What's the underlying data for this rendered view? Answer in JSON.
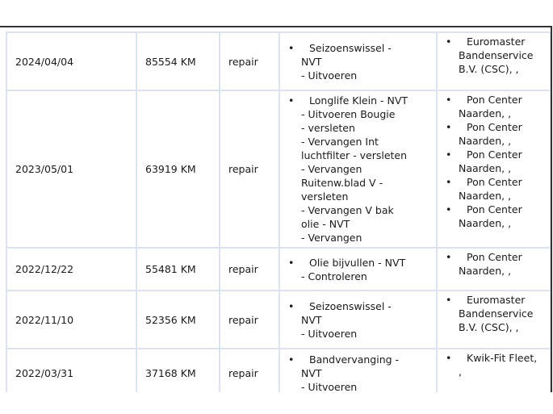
{
  "rows": [
    {
      "date": "2024/04/04",
      "mileage": "85554 KM",
      "type": "repair",
      "work": [
        [
          "Seizoenswissel   -",
          "NVT",
          "- Uitvoeren"
        ]
      ],
      "dealers": [
        [
          "Euromaster",
          "Bandenservice",
          "B.V. (CSC), ,"
        ]
      ]
    },
    {
      "date": "2023/05/01",
      "mileage": "63919 KM",
      "type": "repair",
      "work": [
        [
          "Longlife Klein   - NVT",
          "- Uitvoeren  Bougie",
          "- versleten",
          "- Vervangen  Int",
          "luchtfilter  - versleten",
          "- Vervangen",
          "Ruitenw.blad V   -",
          "versleten",
          "- Vervangen  V bak",
          "olie      - NVT",
          "- Vervangen"
        ]
      ],
      "dealers": [
        [
          "Pon Center",
          "Naarden, ,"
        ],
        [
          "Pon Center",
          "Naarden, ,"
        ],
        [
          "Pon Center",
          "Naarden, ,"
        ],
        [
          "Pon Center",
          "Naarden, ,"
        ],
        [
          "Pon Center",
          "Naarden, ,"
        ]
      ]
    },
    {
      "date": "2022/12/22",
      "mileage": "55481 KM",
      "type": "repair",
      "work": [
        [
          "Olie bijvullen   - NVT",
          "- Controleren"
        ]
      ],
      "dealers": [
        [
          "Pon Center",
          "Naarden, ,"
        ]
      ]
    },
    {
      "date": "2022/11/10",
      "mileage": "52356 KM",
      "type": "repair",
      "work": [
        [
          "Seizoenswissel   -",
          "NVT",
          "- Uitvoeren"
        ]
      ],
      "dealers": [
        [
          "Euromaster",
          "Bandenservice",
          "B.V. (CSC), ,"
        ]
      ]
    },
    {
      "date": "2022/03/31",
      "mileage": "37168 KM",
      "type": "repair",
      "work": [
        [
          "Bandvervanging   -",
          "NVT",
          "- Uitvoeren"
        ]
      ],
      "dealers": [
        [
          "Kwik-Fit Fleet,",
          ","
        ]
      ]
    }
  ]
}
